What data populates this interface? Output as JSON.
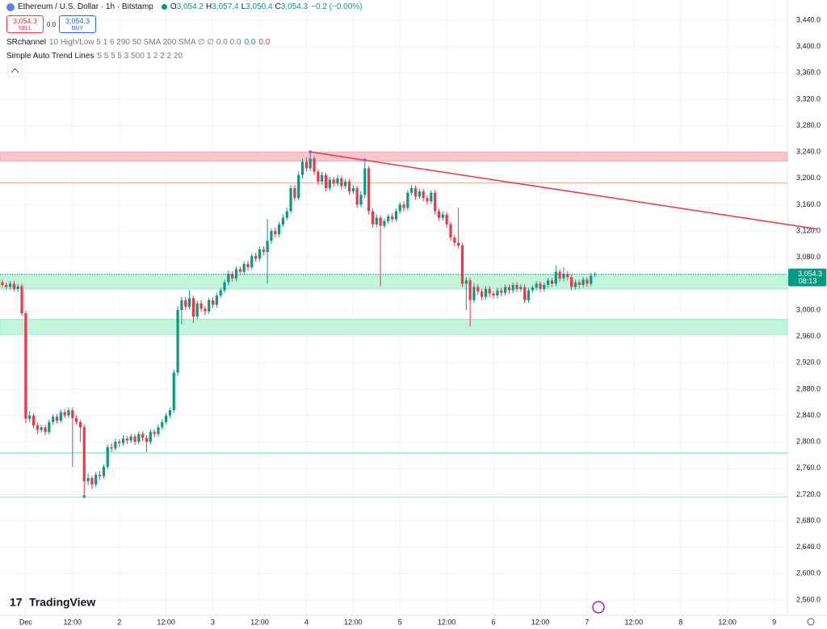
{
  "ui": {
    "symbol": "Ethereum / U.S. Dollar · 1h · Bitstamp",
    "ohlc": [
      {
        "key": "O",
        "value": "3,054.2"
      },
      {
        "key": "H",
        "value": "3,057.4"
      },
      {
        "key": "L",
        "value": "3,050.4"
      },
      {
        "key": "C",
        "value": "3,054.3"
      }
    ],
    "change": "−0.2 (−0.00%)",
    "sell": {
      "price": "3,054.3",
      "label": "SELL"
    },
    "spread": "0.0",
    "buy": {
      "price": "3,054.3",
      "label": "BUY"
    },
    "indicators": [
      {
        "name": "SRchannel",
        "params": "10 High/Low 5 1 6 290 50 SMA 200 SMA ∅ ∅ 0.0 0.0",
        "values": [
          {
            "text": "0.0",
            "color": "#089981"
          },
          {
            "text": "0.0",
            "color": "#f23645"
          }
        ]
      },
      {
        "name": "Simple Auto Trend Lines",
        "params": "5 5 5 5 3 500 1 2 2 2 20",
        "values": []
      }
    ],
    "logo": "TradingView"
  },
  "chart_data": {
    "type": "candlestick",
    "up_color": "#089981",
    "down_color": "#f23645",
    "grid": true,
    "xlim": [
      -6.6,
      195.4
    ],
    "ylim": [
      2536.7,
      3470.6
    ],
    "xticks": [
      {
        "value": 0,
        "label": "Dec"
      },
      {
        "value": 12,
        "label": "12:00"
      },
      {
        "value": 24,
        "label": "2"
      },
      {
        "value": 36,
        "label": "12:00"
      },
      {
        "value": 48,
        "label": "3"
      },
      {
        "value": 60,
        "label": "12:00"
      },
      {
        "value": 72,
        "label": "4"
      },
      {
        "value": 84,
        "label": "12:00"
      },
      {
        "value": 96,
        "label": "5"
      },
      {
        "value": 108,
        "label": "12:00"
      },
      {
        "value": 120,
        "label": "6"
      },
      {
        "value": 132,
        "label": "12:00"
      },
      {
        "value": 144,
        "label": "7"
      },
      {
        "value": 156,
        "label": "12:00"
      },
      {
        "value": 168,
        "label": "8"
      },
      {
        "value": 180,
        "label": "12:00"
      },
      {
        "value": 192,
        "label": "9"
      }
    ],
    "yticks": [
      {
        "value": 2560,
        "label": "2,560.0"
      },
      {
        "value": 2600,
        "label": "2,600.0"
      },
      {
        "value": 2640,
        "label": "2,640.0"
      },
      {
        "value": 2680,
        "label": "2,680.0"
      },
      {
        "value": 2720,
        "label": "2,720.0"
      },
      {
        "value": 2760,
        "label": "2,760.0"
      },
      {
        "value": 2800,
        "label": "2,800.0"
      },
      {
        "value": 2840,
        "label": "2,840.0"
      },
      {
        "value": 2880,
        "label": "2,880.0"
      },
      {
        "value": 2920,
        "label": "2,920.0"
      },
      {
        "value": 2960,
        "label": "2,960.0"
      },
      {
        "value": 3000,
        "label": "3,000.0"
      },
      {
        "value": 3040,
        "label": "3,040.0"
      },
      {
        "value": 3080,
        "label": "3,080.0"
      },
      {
        "value": 3120,
        "label": "3,120.0"
      },
      {
        "value": 3160,
        "label": "3,160.0"
      },
      {
        "value": 3200,
        "label": "3,200.0"
      },
      {
        "value": 3240,
        "label": "3,240.0"
      },
      {
        "value": 3280,
        "label": "3,280.0"
      },
      {
        "value": 3320,
        "label": "3,320.0"
      },
      {
        "value": 3360,
        "label": "3,360.0"
      },
      {
        "value": 3400,
        "label": "3,400.0"
      },
      {
        "value": 3440,
        "label": "3,440.0"
      }
    ],
    "x": [
      -6,
      -5,
      -4,
      -3,
      -2,
      -1,
      0,
      1,
      2,
      3,
      4,
      5,
      6,
      7,
      8,
      9,
      10,
      11,
      12,
      13,
      14,
      15,
      16,
      17,
      18,
      19,
      20,
      21,
      22,
      23,
      24,
      25,
      26,
      27,
      28,
      29,
      30,
      31,
      32,
      33,
      34,
      35,
      36,
      37,
      38,
      39,
      40,
      41,
      42,
      43,
      44,
      45,
      46,
      47,
      48,
      49,
      50,
      51,
      52,
      53,
      54,
      55,
      56,
      57,
      58,
      59,
      60,
      61,
      62,
      63,
      64,
      65,
      66,
      67,
      68,
      69,
      70,
      71,
      72,
      73,
      74,
      75,
      76,
      77,
      78,
      79,
      80,
      81,
      82,
      83,
      84,
      85,
      86,
      87,
      88,
      89,
      90,
      91,
      92,
      93,
      94,
      95,
      96,
      97,
      98,
      99,
      100,
      101,
      102,
      103,
      104,
      105,
      106,
      107,
      108,
      109,
      110,
      111,
      112,
      113,
      114,
      115,
      116,
      117,
      118,
      119,
      120,
      121,
      122,
      123,
      124,
      125,
      126,
      127,
      128,
      129,
      130,
      131,
      132,
      133,
      134,
      135,
      136,
      137,
      138,
      139,
      140,
      141,
      142,
      143,
      144,
      145,
      146
    ],
    "open": [
      3042,
      3038,
      3035,
      3040,
      3032,
      3036,
      2995,
      2835,
      2840,
      2825,
      2818,
      2822,
      2815,
      2830,
      2838,
      2832,
      2845,
      2840,
      2848,
      2836,
      2830,
      2822,
      2740,
      2745,
      2735,
      2750,
      2748,
      2762,
      2792,
      2790,
      2800,
      2798,
      2805,
      2802,
      2808,
      2800,
      2812,
      2806,
      2800,
      2815,
      2812,
      2822,
      2830,
      2840,
      2848,
      2905,
      3000,
      3015,
      3005,
      3018,
      2990,
      3010,
      3002,
      2998,
      3015,
      3008,
      3022,
      3030,
      3042,
      3055,
      3048,
      3062,
      3058,
      3070,
      3065,
      3082,
      3078,
      3092,
      3088,
      3105,
      3120,
      3115,
      3130,
      3140,
      3150,
      3185,
      3170,
      3205,
      3225,
      3215,
      3230,
      3210,
      3195,
      3205,
      3185,
      3198,
      3192,
      3200,
      3188,
      3195,
      3180,
      3185,
      3160,
      3175,
      3215,
      3150,
      3130,
      3140,
      3128,
      3135,
      3142,
      3138,
      3150,
      3160,
      3155,
      3178,
      3185,
      3172,
      3180,
      3170,
      3165,
      3178,
      3150,
      3140,
      3145,
      3130,
      3110,
      3102,
      3098,
      3040,
      3045,
      3015,
      3035,
      3028,
      3020,
      3032,
      3025,
      3022,
      3030,
      3026,
      3035,
      3030,
      3038,
      3032,
      3035,
      3015,
      3030,
      3034,
      3040,
      3032,
      3038,
      3045,
      3040,
      3058,
      3048,
      3055,
      3050,
      3035,
      3042,
      3038,
      3046,
      3040,
      3054.2
    ],
    "high": [
      3046,
      3042,
      3044,
      3044,
      3040,
      3040,
      2999,
      2846,
      2844,
      2829,
      2826,
      2826,
      2834,
      2842,
      2842,
      2849,
      2850,
      2852,
      2852,
      2840,
      2834,
      2826,
      2752,
      2749,
      2754,
      2756,
      2766,
      2796,
      2798,
      2805,
      2804,
      2810,
      2809,
      2812,
      2812,
      2816,
      2816,
      2810,
      2819,
      2819,
      2826,
      2834,
      2844,
      2852,
      2910,
      3006,
      3020,
      3020,
      3030,
      3022,
      3014,
      3015,
      3006,
      3019,
      3019,
      3026,
      3034,
      3046,
      3060,
      3059,
      3066,
      3066,
      3074,
      3075,
      3086,
      3087,
      3096,
      3097,
      3138,
      3124,
      3125,
      3134,
      3145,
      3155,
      3190,
      3190,
      3210,
      3230,
      3232,
      3240,
      3234,
      3214,
      3210,
      3209,
      3202,
      3202,
      3205,
      3204,
      3199,
      3199,
      3190,
      3189,
      3180,
      3228,
      3219,
      3154,
      3145,
      3144,
      3139,
      3146,
      3147,
      3154,
      3164,
      3165,
      3182,
      3190,
      3189,
      3184,
      3184,
      3174,
      3182,
      3182,
      3154,
      3150,
      3149,
      3134,
      3114,
      3155,
      3102,
      3050,
      3049,
      3040,
      3039,
      3032,
      3036,
      3036,
      3029,
      3034,
      3034,
      3039,
      3039,
      3042,
      3042,
      3039,
      3039,
      3034,
      3038,
      3044,
      3044,
      3042,
      3049,
      3049,
      3068,
      3062,
      3065,
      3059,
      3054,
      3046,
      3046,
      3050,
      3050,
      3056,
      3057.4
    ],
    "low": [
      3034,
      3031,
      3031,
      3028,
      3028,
      2991,
      2828,
      2830,
      2820,
      2812,
      2814,
      2810,
      2811,
      2826,
      2828,
      2828,
      2836,
      2836,
      2762,
      2826,
      2800,
      2717,
      2734,
      2728,
      2731,
      2742,
      2744,
      2758,
      2784,
      2786,
      2792,
      2794,
      2797,
      2798,
      2795,
      2796,
      2801,
      2784,
      2796,
      2807,
      2808,
      2818,
      2826,
      2836,
      2844,
      2900,
      2978,
      3000,
      3001,
      2980,
      2986,
      2997,
      2992,
      2994,
      3003,
      3004,
      3018,
      3026,
      3038,
      3043,
      3044,
      3053,
      3054,
      3060,
      3061,
      3073,
      3074,
      3083,
      3040,
      3100,
      3110,
      3111,
      3126,
      3136,
      3146,
      3165,
      3166,
      3200,
      3210,
      3211,
      3205,
      3190,
      3190,
      3180,
      3181,
      3187,
      3188,
      3183,
      3184,
      3175,
      3176,
      3155,
      3156,
      3170,
      3145,
      3125,
      3126,
      3036,
      3124,
      3131,
      3133,
      3134,
      3146,
      3150,
      3151,
      3174,
      3167,
      3168,
      3165,
      3160,
      3161,
      3145,
      3135,
      3136,
      3125,
      3105,
      3097,
      3093,
      3035,
      3000,
      2975,
      3011,
      3023,
      3015,
      3016,
      3020,
      3017,
      3018,
      3021,
      3022,
      3025,
      3026,
      3027,
      3028,
      3010,
      3011,
      3026,
      3030,
      3027,
      3028,
      3034,
      3035,
      3036,
      3043,
      3044,
      3045,
      3030,
      3031,
      3033,
      3034,
      3035,
      3036,
      3050.4
    ],
    "close": [
      3038,
      3035,
      3040,
      3032,
      3036,
      2995,
      2835,
      2840,
      2825,
      2818,
      2822,
      2815,
      2830,
      2838,
      2832,
      2845,
      2840,
      2848,
      2836,
      2830,
      2822,
      2740,
      2745,
      2735,
      2750,
      2748,
      2762,
      2792,
      2790,
      2800,
      2798,
      2805,
      2802,
      2808,
      2800,
      2812,
      2806,
      2800,
      2815,
      2812,
      2822,
      2830,
      2840,
      2848,
      2905,
      3000,
      3015,
      3005,
      3018,
      2990,
      3010,
      3002,
      2998,
      3015,
      3008,
      3022,
      3030,
      3042,
      3055,
      3048,
      3062,
      3058,
      3070,
      3065,
      3082,
      3078,
      3092,
      3088,
      3105,
      3120,
      3115,
      3130,
      3140,
      3150,
      3185,
      3170,
      3205,
      3225,
      3215,
      3230,
      3210,
      3195,
      3205,
      3185,
      3198,
      3192,
      3200,
      3188,
      3195,
      3180,
      3185,
      3160,
      3175,
      3215,
      3150,
      3130,
      3140,
      3128,
      3135,
      3142,
      3138,
      3150,
      3160,
      3155,
      3178,
      3185,
      3172,
      3180,
      3170,
      3165,
      3178,
      3150,
      3140,
      3145,
      3130,
      3110,
      3102,
      3098,
      3040,
      3045,
      3015,
      3035,
      3028,
      3020,
      3032,
      3025,
      3022,
      3030,
      3026,
      3035,
      3030,
      3038,
      3032,
      3035,
      3015,
      3030,
      3034,
      3040,
      3032,
      3038,
      3045,
      3040,
      3058,
      3048,
      3055,
      3050,
      3035,
      3042,
      3038,
      3046,
      3040,
      3052,
      3054.3
    ],
    "zones": [
      {
        "from": 3226,
        "to": 3240,
        "color": "#f7c6ca",
        "edge": "#f5a3aa"
      },
      {
        "from": 3032,
        "to": 3054,
        "color": "#c3f5dc",
        "edge": "#8fe8bd"
      },
      {
        "from": 2963,
        "to": 2986,
        "color": "#c3f5dc",
        "edge": "#8fe8bd"
      }
    ],
    "levels": [
      {
        "value": 3193,
        "color": "#f7b89e"
      },
      {
        "value": 2783,
        "color": "#7fe6b6"
      },
      {
        "value": 2716,
        "color": "#9fe9c9"
      }
    ],
    "trendline": {
      "x": [
        73,
        203
      ],
      "y": [
        3240,
        3123
      ],
      "color": "#f23645"
    },
    "pivot_highs": {
      "x": [
        73,
        87
      ],
      "y": [
        3240,
        3228
      ],
      "color": "#9c5fd6"
    },
    "pivot_lows": {
      "x": [
        15
      ],
      "y": [
        2717
      ],
      "color": "#22ab94"
    },
    "last_price": {
      "value": 3054.3,
      "label": "3,054.3",
      "countdown": "08:13",
      "color": "#089981"
    }
  }
}
